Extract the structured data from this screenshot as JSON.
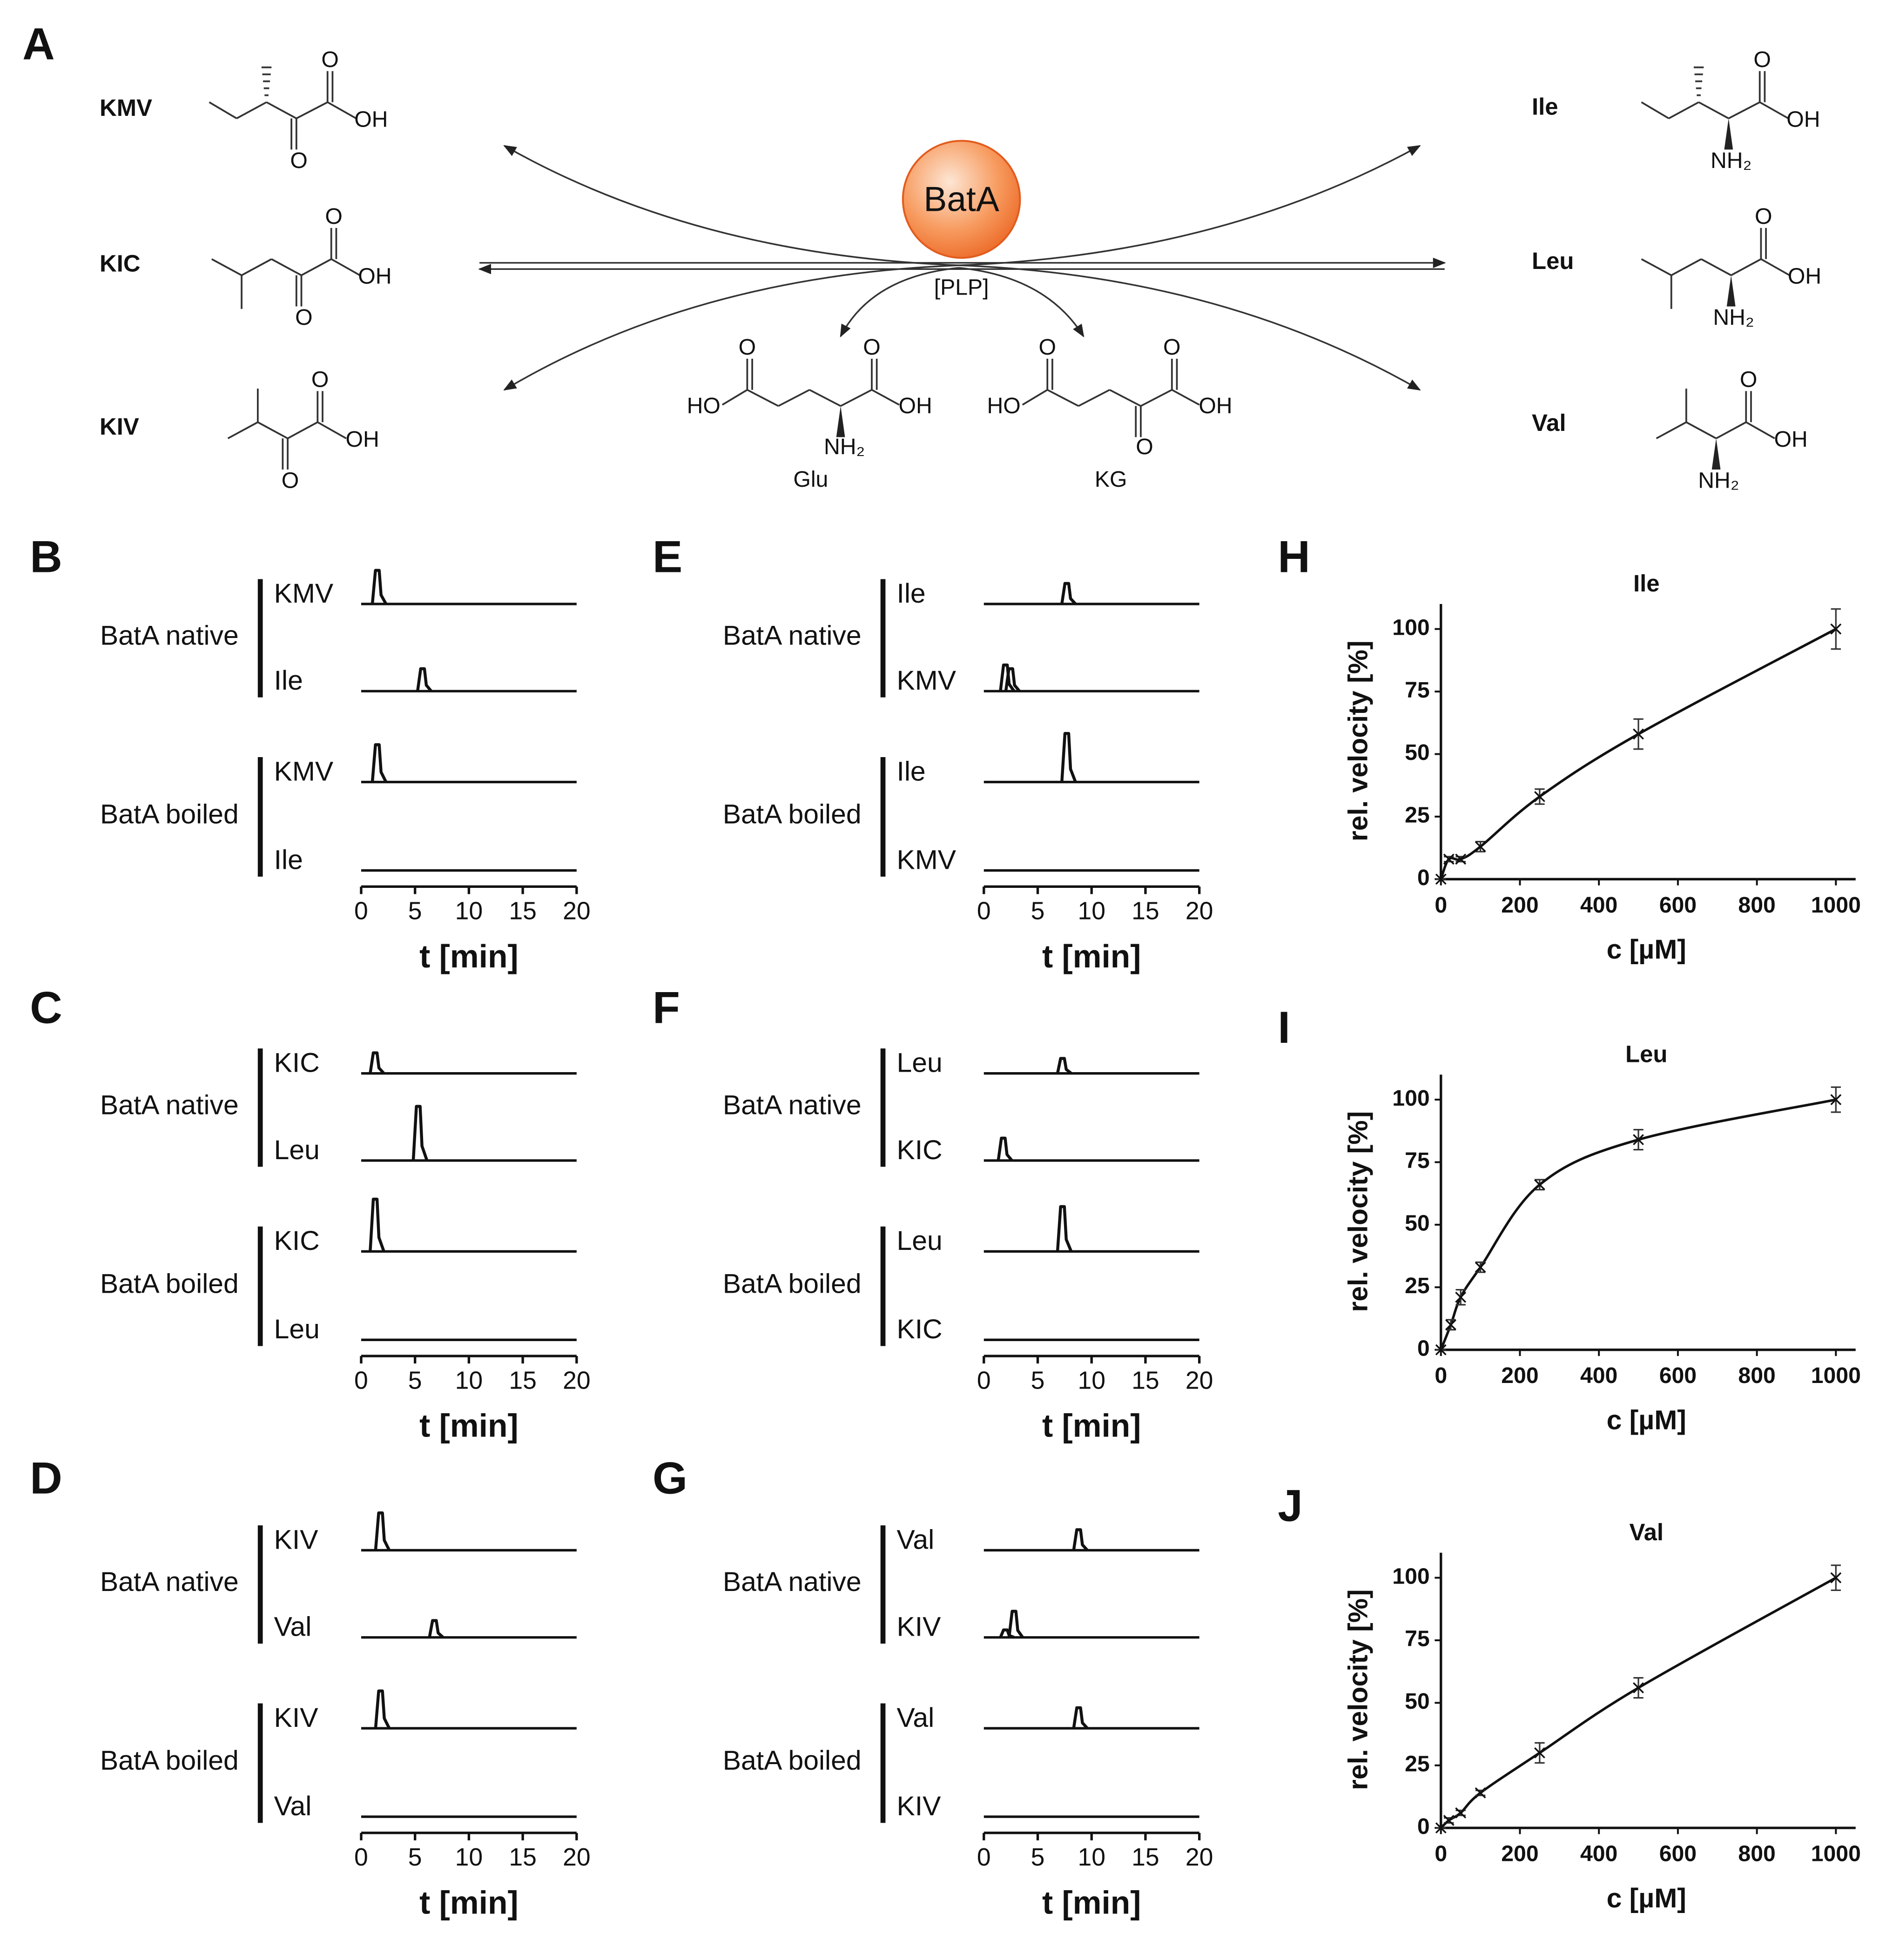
{
  "panel_a": {
    "label": "A",
    "enzyme": "BatA",
    "cofactor": "[PLP]",
    "keto_acids": [
      {
        "name": "KMV",
        "atoms": [
          "O",
          "OH",
          "O"
        ]
      },
      {
        "name": "KIC",
        "atoms": [
          "O",
          "OH",
          "O"
        ]
      },
      {
        "name": "KIV",
        "atoms": [
          "O",
          "OH",
          "O"
        ]
      }
    ],
    "amino_acids": [
      {
        "name": "Ile",
        "atoms": [
          "O",
          "OH",
          "NH₂"
        ]
      },
      {
        "name": "Leu",
        "atoms": [
          "O",
          "OH",
          "NH₂"
        ]
      },
      {
        "name": "Val",
        "atoms": [
          "O",
          "OH",
          "NH₂"
        ]
      }
    ],
    "cosubstrates": [
      {
        "name": "Glu",
        "atoms": [
          "HO",
          "O",
          "O",
          "OH",
          "NH₂"
        ]
      },
      {
        "name": "KG",
        "atoms": [
          "HO",
          "O",
          "O",
          "OH",
          "O"
        ]
      }
    ]
  },
  "chart_data": [
    {
      "type": "chromatogram",
      "panel": "B",
      "xlabel": "t [min]",
      "xlim": [
        0,
        20
      ],
      "xticks": [
        0,
        5,
        10,
        15,
        20
      ],
      "groups": [
        {
          "name": "BatA native",
          "series": [
            {
              "name": "KMV",
              "x": [
                1.5
              ],
              "values": [
                0.9
              ]
            },
            {
              "name": "Ile",
              "x": [
                5.7
              ],
              "values": [
                0.6
              ]
            }
          ]
        },
        {
          "name": "BatA boiled",
          "series": [
            {
              "name": "KMV",
              "x": [
                1.5
              ],
              "values": [
                1.0
              ]
            },
            {
              "name": "Ile",
              "x": [],
              "values": []
            }
          ]
        }
      ]
    },
    {
      "type": "chromatogram",
      "panel": "C",
      "xlabel": "t [min]",
      "xlim": [
        0,
        20
      ],
      "xticks": [
        0,
        5,
        10,
        15,
        20
      ],
      "groups": [
        {
          "name": "BatA native",
          "series": [
            {
              "name": "KIC",
              "x": [
                1.3
              ],
              "values": [
                0.55
              ]
            },
            {
              "name": "Leu",
              "x": [
                5.3
              ],
              "values": [
                1.45
              ]
            }
          ]
        },
        {
          "name": "BatA boiled",
          "series": [
            {
              "name": "KIC",
              "x": [
                1.3
              ],
              "values": [
                1.4
              ]
            },
            {
              "name": "Leu",
              "x": [],
              "values": []
            }
          ]
        }
      ]
    },
    {
      "type": "chromatogram",
      "panel": "D",
      "xlabel": "t [min]",
      "xlim": [
        0,
        20
      ],
      "xticks": [
        0,
        5,
        10,
        15,
        20
      ],
      "groups": [
        {
          "name": "BatA native",
          "series": [
            {
              "name": "KIV",
              "x": [
                1.8
              ],
              "values": [
                1.0
              ]
            },
            {
              "name": "Val",
              "x": [
                6.8
              ],
              "values": [
                0.45
              ]
            }
          ]
        },
        {
          "name": "BatA boiled",
          "series": [
            {
              "name": "KIV",
              "x": [
                1.8
              ],
              "values": [
                1.0
              ]
            },
            {
              "name": "Val",
              "x": [],
              "values": []
            }
          ]
        }
      ]
    },
    {
      "type": "chromatogram",
      "panel": "E",
      "xlabel": "t [min]",
      "xlim": [
        0,
        20
      ],
      "xticks": [
        0,
        5,
        10,
        15,
        20
      ],
      "groups": [
        {
          "name": "BatA native",
          "series": [
            {
              "name": "Ile",
              "x": [
                7.7
              ],
              "values": [
                0.55
              ]
            },
            {
              "name": "KMV",
              "x": [
                2.0,
                2.5
              ],
              "values": [
                0.7,
                0.6
              ]
            }
          ]
        },
        {
          "name": "BatA boiled",
          "series": [
            {
              "name": "Ile",
              "x": [
                7.7
              ],
              "values": [
                1.3
              ]
            },
            {
              "name": "KMV",
              "x": [],
              "values": []
            }
          ]
        }
      ]
    },
    {
      "type": "chromatogram",
      "panel": "F",
      "xlabel": "t [min]",
      "xlim": [
        0,
        20
      ],
      "xticks": [
        0,
        5,
        10,
        15,
        20
      ],
      "groups": [
        {
          "name": "BatA native",
          "series": [
            {
              "name": "Leu",
              "x": [
                7.3
              ],
              "values": [
                0.4
              ]
            },
            {
              "name": "KIC",
              "x": [
                1.8
              ],
              "values": [
                0.6
              ]
            }
          ]
        },
        {
          "name": "BatA boiled",
          "series": [
            {
              "name": "Leu",
              "x": [
                7.3
              ],
              "values": [
                1.2
              ]
            },
            {
              "name": "KIC",
              "x": [],
              "values": []
            }
          ]
        }
      ]
    },
    {
      "type": "chromatogram",
      "panel": "G",
      "xlabel": "t [min]",
      "xlim": [
        0,
        20
      ],
      "xticks": [
        0,
        5,
        10,
        15,
        20
      ],
      "groups": [
        {
          "name": "BatA native",
          "series": [
            {
              "name": "Val",
              "x": [
                8.8
              ],
              "values": [
                0.55
              ]
            },
            {
              "name": "KIV",
              "x": [
                2.0,
                2.8
              ],
              "values": [
                0.2,
                0.7
              ]
            }
          ]
        },
        {
          "name": "BatA boiled",
          "series": [
            {
              "name": "Val",
              "x": [
                8.8
              ],
              "values": [
                0.55
              ]
            },
            {
              "name": "KIV",
              "x": [],
              "values": []
            }
          ]
        }
      ]
    },
    {
      "type": "kinetics",
      "panel": "H",
      "title": "Ile",
      "xlabel": "c [µM]",
      "ylabel": "rel. velocity [%]",
      "xlim": [
        0,
        1050
      ],
      "xticks": [
        0,
        200,
        400,
        600,
        800,
        1000
      ],
      "ylim": [
        0,
        110
      ],
      "yticks": [
        0,
        25,
        50,
        75,
        100
      ],
      "x": [
        0,
        20,
        50,
        100,
        250,
        500,
        1000
      ],
      "values": [
        0,
        8,
        8,
        13,
        33,
        58,
        100
      ],
      "errors": [
        0,
        1,
        1,
        2,
        3,
        6,
        8
      ]
    },
    {
      "type": "kinetics",
      "panel": "I",
      "title": "Leu",
      "xlabel": "c [µM]",
      "ylabel": "rel. velocity [%]",
      "xlim": [
        0,
        1050
      ],
      "xticks": [
        0,
        200,
        400,
        600,
        800,
        1000
      ],
      "ylim": [
        0,
        110
      ],
      "yticks": [
        0,
        25,
        50,
        75,
        100
      ],
      "x": [
        0,
        25,
        50,
        100,
        250,
        500,
        1000
      ],
      "values": [
        0,
        10,
        21,
        33,
        66,
        84,
        100
      ],
      "errors": [
        0,
        2,
        3,
        2,
        2,
        4,
        5
      ]
    },
    {
      "type": "kinetics",
      "panel": "J",
      "title": "Val",
      "xlabel": "c [µM]",
      "ylabel": "rel. velocity [%]",
      "xlim": [
        0,
        1050
      ],
      "xticks": [
        0,
        200,
        400,
        600,
        800,
        1000
      ],
      "ylim": [
        0,
        110
      ],
      "yticks": [
        0,
        25,
        50,
        75,
        100
      ],
      "x": [
        0,
        20,
        50,
        100,
        250,
        500,
        1000
      ],
      "values": [
        0,
        3,
        6,
        14,
        30,
        56,
        100
      ],
      "errors": [
        0,
        1,
        1,
        1,
        4,
        4,
        5
      ]
    }
  ]
}
